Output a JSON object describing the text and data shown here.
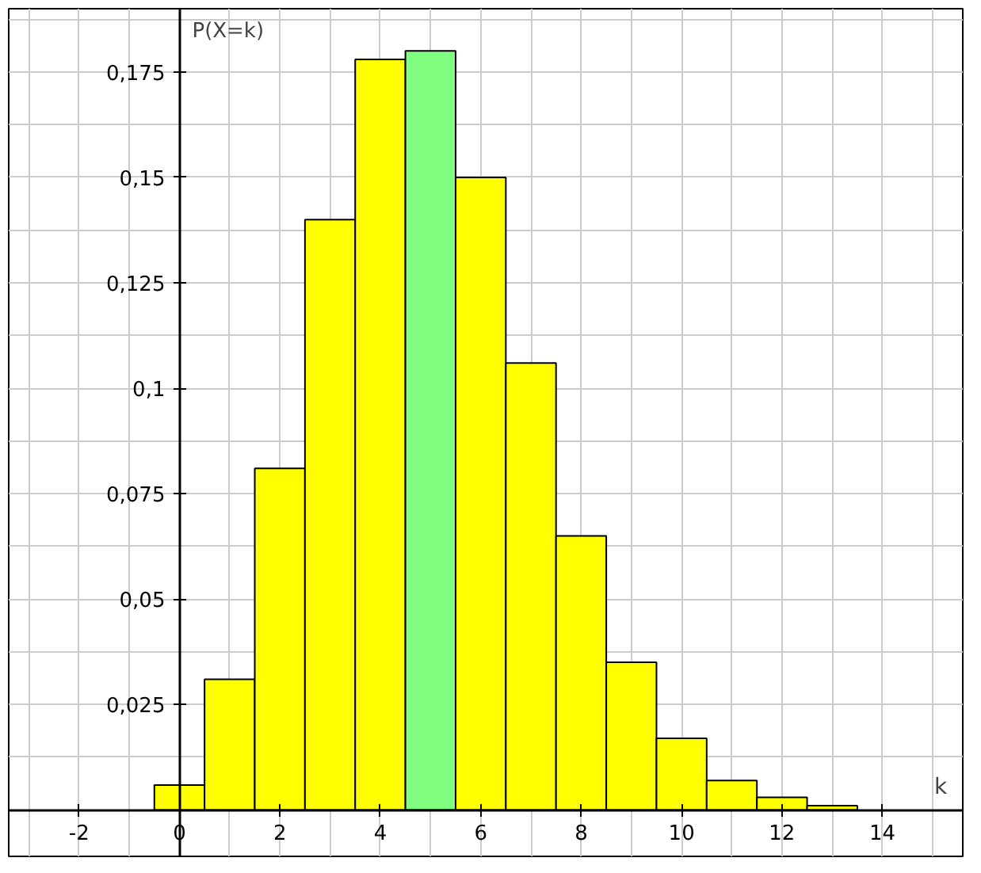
{
  "chart_data": {
    "type": "histogram",
    "xlabel": "k",
    "ylabel": "P(X=k)",
    "bins": [
      -0.5,
      0.5,
      1.5,
      2.5,
      3.5,
      4.5,
      5.5,
      6.5,
      7.5,
      8.5,
      9.5,
      10.5,
      11.5,
      12.5,
      13.5,
      14.5
    ],
    "values": [
      0.0059,
      0.031,
      0.081,
      0.14,
      0.178,
      0.18,
      0.15,
      0.106,
      0.065,
      0.035,
      0.017,
      0.007,
      0.003,
      0.001,
      null
    ],
    "colors": [
      "#ffff00",
      "#ffff00",
      "#ffff00",
      "#ffff00",
      "#ffff00",
      "#80ff80",
      "#ffff00",
      "#ffff00",
      "#ffff00",
      "#ffff00",
      "#ffff00",
      "#ffff00",
      "#ffff00",
      "#ffff00",
      "#ffff00"
    ],
    "xlim": [
      -3.4,
      15.6
    ],
    "ylim": [
      -0.011,
      0.19
    ],
    "xticks": [
      -2,
      0,
      2,
      4,
      6,
      8,
      10,
      12,
      14
    ],
    "yticks": [
      {
        "value": 0.025,
        "label": "0,025"
      },
      {
        "value": 0.05,
        "label": "0,05"
      },
      {
        "value": 0.075,
        "label": "0,075"
      },
      {
        "value": 0.1,
        "label": "0,1"
      },
      {
        "value": 0.125,
        "label": "0,125"
      },
      {
        "value": 0.15,
        "label": "0,15"
      },
      {
        "value": 0.175,
        "label": "0,175"
      }
    ],
    "grid": true
  }
}
